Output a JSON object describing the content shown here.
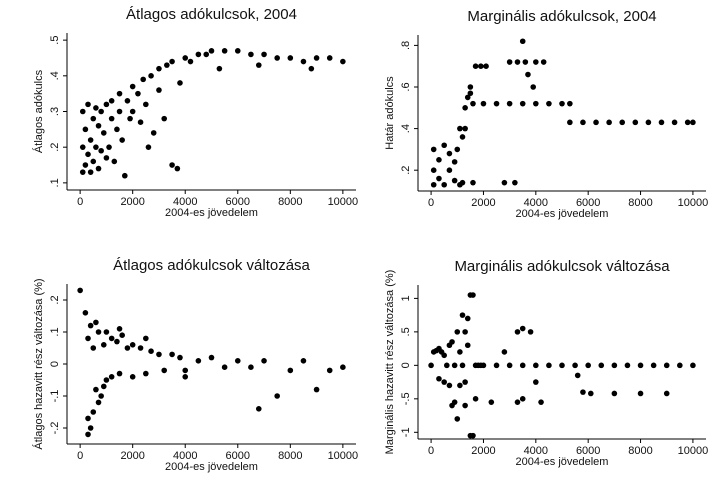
{
  "chart_data": [
    {
      "type": "scatter",
      "title": "Átlagos adókulcsok, 2004",
      "xlabel": "2004-es jövedelem",
      "ylabel": "Átlagos adókulcs",
      "color": "#000000",
      "xlim": [
        -500,
        10500
      ],
      "ylim": [
        0.08,
        0.52
      ],
      "xticks": [
        0,
        2000,
        4000,
        6000,
        8000,
        10000
      ],
      "yticks": [
        {
          "value": 0.1,
          "label": ".1"
        },
        {
          "value": 0.2,
          "label": ".2"
        },
        {
          "value": 0.3,
          "label": ".3"
        },
        {
          "value": 0.4,
          "label": ".4"
        },
        {
          "value": 0.5,
          "label": ".5"
        }
      ],
      "x": [
        100,
        100,
        100,
        200,
        200,
        300,
        300,
        400,
        400,
        500,
        500,
        600,
        600,
        700,
        700,
        800,
        800,
        900,
        1000,
        1000,
        1100,
        1200,
        1200,
        1300,
        1400,
        1500,
        1500,
        1600,
        1800,
        1900,
        2000,
        2000,
        2200,
        2400,
        2500,
        2700,
        2800,
        3000,
        3000,
        3200,
        3300,
        3500,
        3500,
        3700,
        3800,
        4000,
        4200,
        4500,
        4800,
        5000,
        5300,
        5500,
        6000,
        6500,
        7000,
        7500,
        8000,
        8500,
        9000,
        9500,
        10000,
        6800,
        8800,
        2600,
        2300,
        1700
      ],
      "values": [
        0.13,
        0.2,
        0.3,
        0.15,
        0.25,
        0.32,
        0.18,
        0.13,
        0.22,
        0.28,
        0.16,
        0.31,
        0.2,
        0.14,
        0.26,
        0.19,
        0.3,
        0.24,
        0.17,
        0.32,
        0.2,
        0.28,
        0.33,
        0.16,
        0.25,
        0.3,
        0.35,
        0.22,
        0.33,
        0.28,
        0.37,
        0.3,
        0.35,
        0.39,
        0.32,
        0.4,
        0.24,
        0.42,
        0.36,
        0.28,
        0.43,
        0.15,
        0.44,
        0.14,
        0.38,
        0.45,
        0.44,
        0.46,
        0.46,
        0.47,
        0.42,
        0.47,
        0.47,
        0.46,
        0.46,
        0.45,
        0.45,
        0.44,
        0.45,
        0.45,
        0.44,
        0.43,
        0.42,
        0.2,
        0.27,
        0.12
      ]
    },
    {
      "type": "scatter",
      "title": "Marginális adókulcsok, 2004",
      "xlabel": "2004-es jövedelem",
      "ylabel": "Határ adókulcs",
      "color": "#000000",
      "xlim": [
        -500,
        10500
      ],
      "ylim": [
        0.1,
        0.85
      ],
      "xticks": [
        0,
        2000,
        4000,
        6000,
        8000,
        10000
      ],
      "yticks": [
        {
          "value": 0.2,
          "label": ".2"
        },
        {
          "value": 0.4,
          "label": ".4"
        },
        {
          "value": 0.6,
          "label": ".6"
        },
        {
          "value": 0.8,
          "label": ".8"
        }
      ],
      "x": [
        100,
        100,
        100,
        300,
        300,
        500,
        500,
        700,
        700,
        900,
        900,
        1000,
        1100,
        1100,
        1200,
        1300,
        1300,
        1400,
        1500,
        1500,
        1200,
        1600,
        1700,
        1900,
        2100,
        2800,
        3200,
        3000,
        3300,
        3600,
        3500,
        3700,
        4000,
        4300,
        3900,
        1600,
        2000,
        2500,
        3000,
        3500,
        4000,
        4500,
        5000,
        5300,
        5300,
        5800,
        6300,
        6800,
        7300,
        7800,
        8300,
        8800,
        9300,
        9800,
        10000
      ],
      "values": [
        0.13,
        0.2,
        0.3,
        0.16,
        0.25,
        0.13,
        0.32,
        0.2,
        0.28,
        0.15,
        0.24,
        0.3,
        0.13,
        0.4,
        0.36,
        0.4,
        0.5,
        0.55,
        0.6,
        0.57,
        0.14,
        0.14,
        0.7,
        0.7,
        0.7,
        0.14,
        0.14,
        0.72,
        0.72,
        0.72,
        0.82,
        0.66,
        0.72,
        0.72,
        0.6,
        0.52,
        0.52,
        0.52,
        0.52,
        0.52,
        0.52,
        0.52,
        0.52,
        0.52,
        0.43,
        0.43,
        0.43,
        0.43,
        0.43,
        0.43,
        0.43,
        0.43,
        0.43,
        0.43,
        0.43
      ]
    },
    {
      "type": "scatter",
      "title": "Átlagos adókulcsok változása",
      "xlabel": "2004-es jövedelem",
      "ylabel": "Átlagos hazavitt rész változása (%)",
      "color": "#000000",
      "xlim": [
        -500,
        10500
      ],
      "ylim": [
        -0.25,
        0.25
      ],
      "xticks": [
        0,
        2000,
        4000,
        6000,
        8000,
        10000
      ],
      "yticks": [
        {
          "value": -0.2,
          "label": "-.2"
        },
        {
          "value": -0.1,
          "label": "-.1"
        },
        0,
        {
          "value": 0.1,
          "label": ".1"
        },
        {
          "value": 0.2,
          "label": ".2"
        }
      ],
      "x": [
        0,
        200,
        300,
        300,
        400,
        400,
        500,
        500,
        600,
        600,
        700,
        700,
        800,
        900,
        1000,
        1000,
        1200,
        1200,
        1400,
        1500,
        1600,
        1800,
        2000,
        2000,
        2300,
        2500,
        2700,
        3000,
        3200,
        3500,
        3800,
        4000,
        4500,
        5000,
        5500,
        6000,
        6500,
        6800,
        7000,
        7500,
        8000,
        8500,
        9000,
        9500,
        10000,
        300,
        900,
        1500,
        2500,
        4000
      ],
      "values": [
        0.23,
        0.16,
        -0.22,
        0.08,
        -0.2,
        0.12,
        -0.15,
        0.05,
        -0.08,
        0.13,
        0.1,
        -0.12,
        -0.1,
        0.06,
        0.1,
        -0.05,
        0.08,
        -0.04,
        0.07,
        -0.03,
        0.09,
        0.05,
        0.06,
        -0.04,
        0.05,
        -0.03,
        0.04,
        0.03,
        -0.02,
        0.03,
        0.02,
        -0.02,
        0.01,
        0.02,
        -0.01,
        0.01,
        -0.01,
        -0.14,
        0.01,
        -0.1,
        -0.02,
        0.01,
        -0.08,
        -0.02,
        -0.01,
        -0.17,
        -0.07,
        0.11,
        0.08,
        -0.04
      ]
    },
    {
      "type": "scatter",
      "title": "Marginális adókulcsok változása",
      "xlabel": "2004-es jövedelem",
      "ylabel": "Marginális hazavitt rész változása (%)",
      "color": "#000000",
      "xlim": [
        -500,
        10500
      ],
      "ylim": [
        -1.1,
        1.2
      ],
      "xticks": [
        0,
        2000,
        4000,
        6000,
        8000,
        10000
      ],
      "yticks": [
        -1,
        {
          "value": -0.5,
          "label": "-.5"
        },
        0,
        {
          "value": 0.5,
          "label": ".5"
        },
        1
      ],
      "x": [
        0,
        100,
        200,
        300,
        400,
        500,
        600,
        700,
        800,
        900,
        1000,
        1100,
        1200,
        1300,
        1400,
        1500,
        1600,
        1700,
        1800,
        1900,
        300,
        500,
        700,
        900,
        1100,
        1300,
        1500,
        1600,
        1700,
        1300,
        1400,
        1200,
        1000,
        800,
        2000,
        2500,
        3000,
        3500,
        4000,
        3300,
        3500,
        3800,
        3300,
        3500,
        4000,
        4500,
        5000,
        5500,
        5600,
        6000,
        6500,
        7000,
        7500,
        8000,
        8500,
        9000,
        9500,
        10000,
        5800,
        6100,
        7000,
        8000,
        9000,
        2300,
        2800,
        4200
      ],
      "values": [
        0,
        0.2,
        0.22,
        0.25,
        0.2,
        0.15,
        0,
        0.3,
        0.35,
        0,
        0.5,
        0.2,
        0,
        0.5,
        0.3,
        1.05,
        1.05,
        0,
        0,
        0,
        -0.2,
        -0.25,
        -0.3,
        -0.55,
        -0.3,
        -0.6,
        -1.05,
        -1.05,
        -0.5,
        -0.25,
        0.7,
        0.75,
        -0.8,
        -0.6,
        0,
        0,
        0,
        0,
        0,
        0.5,
        0.55,
        0.5,
        -0.55,
        -0.5,
        -0.25,
        0,
        0,
        0,
        -0.15,
        0,
        0,
        0,
        0,
        0,
        0,
        0,
        0,
        0,
        -0.4,
        -0.42,
        -0.42,
        -0.42,
        -0.42,
        -0.55,
        0.2,
        -0.55
      ]
    }
  ]
}
